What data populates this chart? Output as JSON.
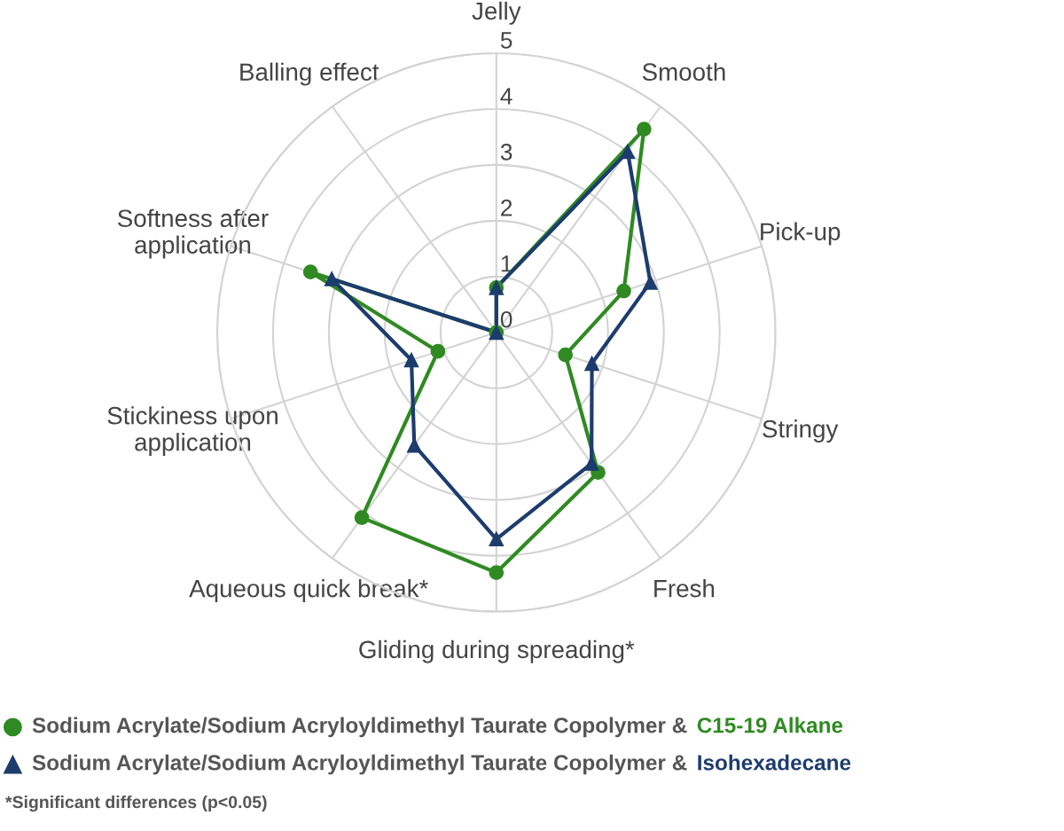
{
  "chart_data": {
    "type": "radar",
    "categories": [
      "Jelly",
      "Smooth",
      "Pick-up",
      "Stringy",
      "Fresh",
      "Gliding during spreading*",
      "Aqueous quick break*",
      "Stickiness upon\napplication",
      "Softness after\napplication",
      "Balling effect"
    ],
    "ylim": [
      0,
      5
    ],
    "yticks": [
      0,
      1,
      2,
      3,
      4,
      5
    ],
    "grid": true,
    "legend": "bottom",
    "line_style": "solid",
    "series": [
      {
        "name": "Sodium Acrylate/Sodium Acryloyldimethyl Taurate Copolymer & C15-19 Alkane",
        "color": "#2f8a22",
        "marker": "circle",
        "values": [
          0.8,
          4.5,
          2.4,
          1.3,
          3.1,
          4.3,
          4.1,
          1.1,
          3.5,
          0
        ]
      },
      {
        "name": "Sodium Acrylate/Sodium Acryloyldimethyl Taurate Copolymer & Isohexadecane",
        "color": "#1d3c6e",
        "marker": "triangle",
        "values": [
          0.8,
          4.0,
          2.9,
          1.8,
          2.9,
          3.7,
          2.5,
          1.6,
          3.1,
          0
        ]
      }
    ],
    "annotations": [
      "*Significant differences (p<0.05)"
    ]
  }
}
